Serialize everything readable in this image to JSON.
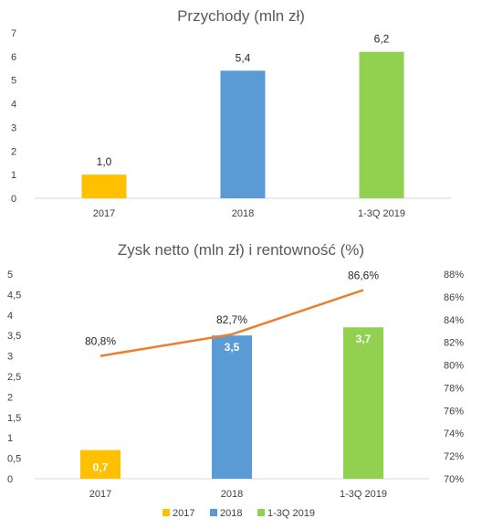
{
  "chart_data": [
    {
      "type": "bar",
      "title": "Przychody (mln zł)",
      "categories": [
        "2017",
        "2018",
        "1-3Q 2019"
      ],
      "values": [
        1.0,
        5.4,
        6.2
      ],
      "value_labels": [
        "1,0",
        "5,4",
        "6,2"
      ],
      "colors": [
        "#FFC000",
        "#5B9BD5",
        "#92D050"
      ],
      "ylim": [
        0,
        7
      ],
      "yticks": [
        "0",
        "1",
        "2",
        "3",
        "4",
        "5",
        "6",
        "7"
      ],
      "grid": false
    },
    {
      "type": "bar",
      "title": "Zysk netto (mln zł) i rentowność (%)",
      "categories": [
        "2017",
        "2018",
        "1-3Q 2019"
      ],
      "values": [
        0.7,
        3.5,
        3.7
      ],
      "value_labels": [
        "0,7",
        "3,5",
        "3,7"
      ],
      "colors": [
        "#FFC000",
        "#5B9BD5",
        "#92D050"
      ],
      "ylim": [
        0,
        5
      ],
      "yticks": [
        "0",
        "0,5",
        "1",
        "1,5",
        "2",
        "2,5",
        "3",
        "3,5",
        "4",
        "4,5",
        "5"
      ],
      "line_series": {
        "values": [
          80.8,
          82.7,
          86.6
        ],
        "value_labels": [
          "80,8%",
          "82,7%",
          "86,6%"
        ],
        "color": "#ED7D31",
        "ylim": [
          70,
          88
        ],
        "yticks": [
          "70%",
          "72%",
          "74%",
          "76%",
          "78%",
          "80%",
          "82%",
          "84%",
          "86%",
          "88%"
        ]
      },
      "legend": {
        "placement": "bottom",
        "entries": [
          "2017",
          "2018",
          "1-3Q 2019"
        ]
      },
      "grid": false
    }
  ]
}
